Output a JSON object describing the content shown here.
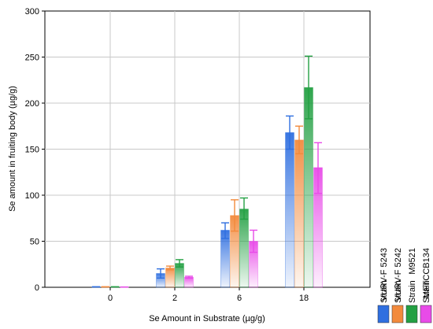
{
  "chart_data": {
    "type": "bar",
    "xlabel": "Se Amount in Substrate (µg/g)",
    "ylabel": "Se amount in fruiting body (µg/g)",
    "categories": [
      "0",
      "2",
      "6",
      "18"
    ],
    "ylim": [
      0,
      300
    ],
    "yticks": [
      "0",
      "50",
      "100",
      "150",
      "200",
      "250",
      "300"
    ],
    "grid": true,
    "legend_position": "right",
    "series": [
      {
        "name": "VURV-F 5243",
        "legend_prefix": "Strain",
        "color": "#2f6fe0",
        "values": [
          0.5,
          15,
          62,
          168
        ],
        "err_low": [
          0.5,
          10,
          53,
          150
        ],
        "err_high": [
          0.5,
          20,
          70,
          186
        ]
      },
      {
        "name": "VURV-F 5242",
        "legend_prefix": "Strain",
        "color": "#f28a3c",
        "values": [
          0.5,
          21,
          78,
          160
        ],
        "err_low": [
          0.5,
          19,
          61,
          145
        ],
        "err_high": [
          0.5,
          23,
          95,
          175
        ]
      },
      {
        "name": "M9521",
        "legend_prefix": "Strain",
        "color": "#23a043",
        "values": [
          0.5,
          26,
          85,
          217
        ],
        "err_low": [
          0.5,
          22,
          74,
          183
        ],
        "err_high": [
          0.5,
          30,
          97,
          251
        ]
      },
      {
        "name": "MFTCCB134",
        "legend_prefix": "Strain",
        "color": "#e84be8",
        "values": [
          0.3,
          11,
          50,
          130
        ],
        "err_low": [
          0.3,
          10,
          38,
          102
        ],
        "err_high": [
          0.3,
          12,
          62,
          157
        ]
      }
    ]
  }
}
